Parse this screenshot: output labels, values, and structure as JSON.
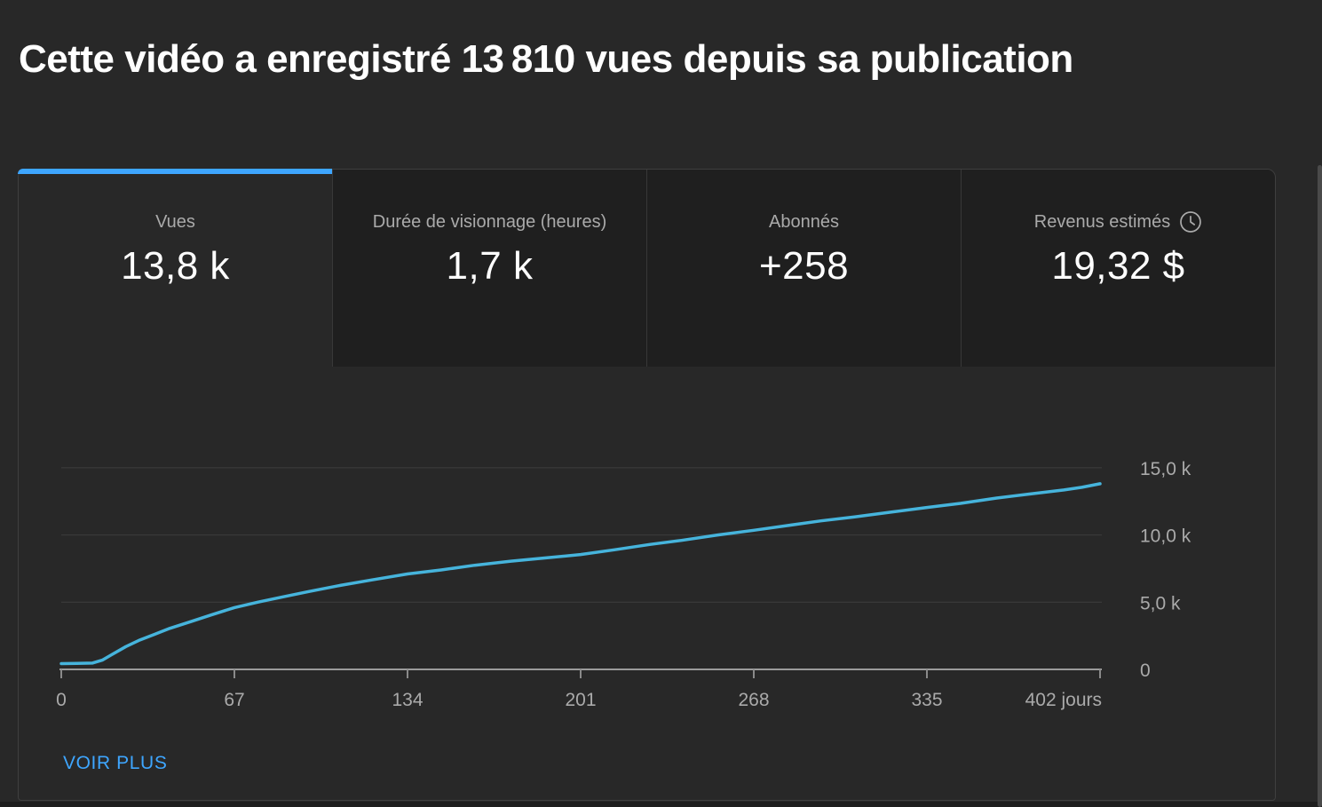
{
  "header": {
    "title": "Cette vidéo a enregistré 13 810 vues depuis sa publication"
  },
  "metrics": [
    {
      "label": "Vues",
      "value": "13,8 k",
      "state": "active"
    },
    {
      "label": "Durée de visionnage (heures)",
      "value": "1,7 k",
      "state": "inactive"
    },
    {
      "label": "Abonnés",
      "value": "+258",
      "state": "inactive"
    },
    {
      "label": "Revenus estimés",
      "value": "19,32 $",
      "state": "inactive",
      "icon": "clock-icon"
    }
  ],
  "footer": {
    "see_more_label": "VOIR PLUS"
  },
  "colors": {
    "page_bg": "#282828",
    "inactive_tab_bg": "#1f1f1f",
    "card_border": "#3f3f3f",
    "accent_blue": "#3ea6ff",
    "line_blue": "#46b4dc",
    "grid_line": "#3d3d3d",
    "axis_line": "#9b9b9b",
    "tick_mark": "#8a8a8a",
    "muted_text": "#aaaaaa",
    "value_text": "#ffffff"
  },
  "chart_data": {
    "type": "line",
    "xlabel": "jours",
    "ylabel": "Vues",
    "xlim": [
      0,
      402
    ],
    "ylim": [
      0,
      15500
    ],
    "grid": "horizontal",
    "legend": "none",
    "x_ticks": [
      0,
      67,
      134,
      201,
      268,
      335,
      402
    ],
    "x_tick_labels": [
      "0",
      "67",
      "134",
      "201",
      "268",
      "335",
      "402 jours"
    ],
    "y_ticks": [
      0,
      5000,
      10000,
      15000
    ],
    "y_tick_labels": [
      "0",
      "5,0 k",
      "10,0 k",
      "15,0 k"
    ],
    "series": [
      {
        "name": "Vues",
        "x": [
          0,
          6,
          12,
          16,
          20,
          25,
          30,
          36,
          42,
          50,
          58,
          67,
          76,
          86,
          96,
          108,
          120,
          134,
          147,
          160,
          174,
          188,
          201,
          214,
          228,
          240,
          254,
          268,
          281,
          294,
          307,
          321,
          335,
          348,
          362,
          375,
          388,
          395,
          402
        ],
        "values": [
          430,
          440,
          470,
          700,
          1150,
          1700,
          2150,
          2600,
          3050,
          3550,
          4050,
          4600,
          5000,
          5400,
          5800,
          6250,
          6650,
          7100,
          7400,
          7750,
          8050,
          8300,
          8550,
          8900,
          9300,
          9600,
          10000,
          10350,
          10700,
          11050,
          11350,
          11700,
          12050,
          12350,
          12750,
          13050,
          13350,
          13550,
          13810
        ],
        "color": "#46b4dc"
      }
    ]
  }
}
